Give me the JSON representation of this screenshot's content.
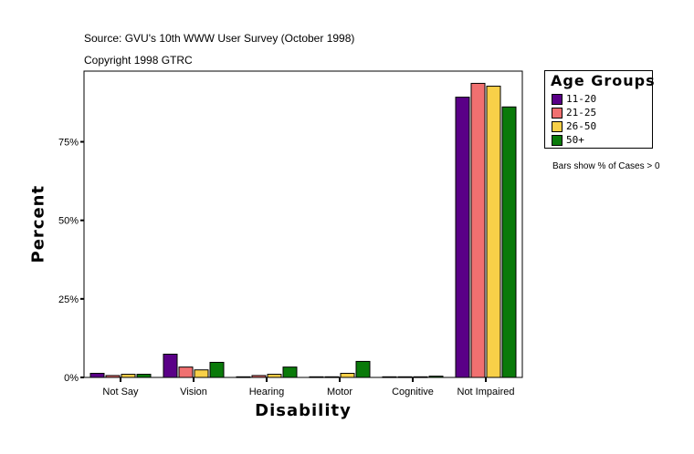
{
  "header": {
    "source": "Source: GVU's 10th WWW User Survey (October 1998)",
    "copyright": "Copyright 1998 GTRC"
  },
  "note": "Bars show % of Cases > 0",
  "chart_data": {
    "type": "bar",
    "xlabel": "Disability",
    "ylabel": "Percent",
    "ylim": [
      0,
      97.5
    ],
    "yticks": [
      0,
      25,
      50,
      75
    ],
    "ytick_labels": [
      "0%",
      "25%",
      "50%",
      "75%"
    ],
    "categories": [
      "Not Say",
      "Vision",
      "Hearing",
      "Motor",
      "Cognitive",
      "Not Impaired"
    ],
    "legend_title": "Age Groups",
    "legend_position": "right",
    "grid": false,
    "series": [
      {
        "name": "11-20",
        "color": "#5a0087",
        "values": [
          1.3,
          7.4,
          0.2,
          0.2,
          0.2,
          89.2
        ]
      },
      {
        "name": "21-25",
        "color": "#f07070",
        "values": [
          0.6,
          3.3,
          0.6,
          0.2,
          0.2,
          93.6
        ]
      },
      {
        "name": "26-50",
        "color": "#f8d048",
        "values": [
          1.0,
          2.4,
          1.0,
          1.3,
          0.2,
          92.7
        ]
      },
      {
        "name": "50+",
        "color": "#0a7a0a",
        "values": [
          1.0,
          4.8,
          3.3,
          5.1,
          0.4,
          86.1
        ]
      }
    ]
  }
}
